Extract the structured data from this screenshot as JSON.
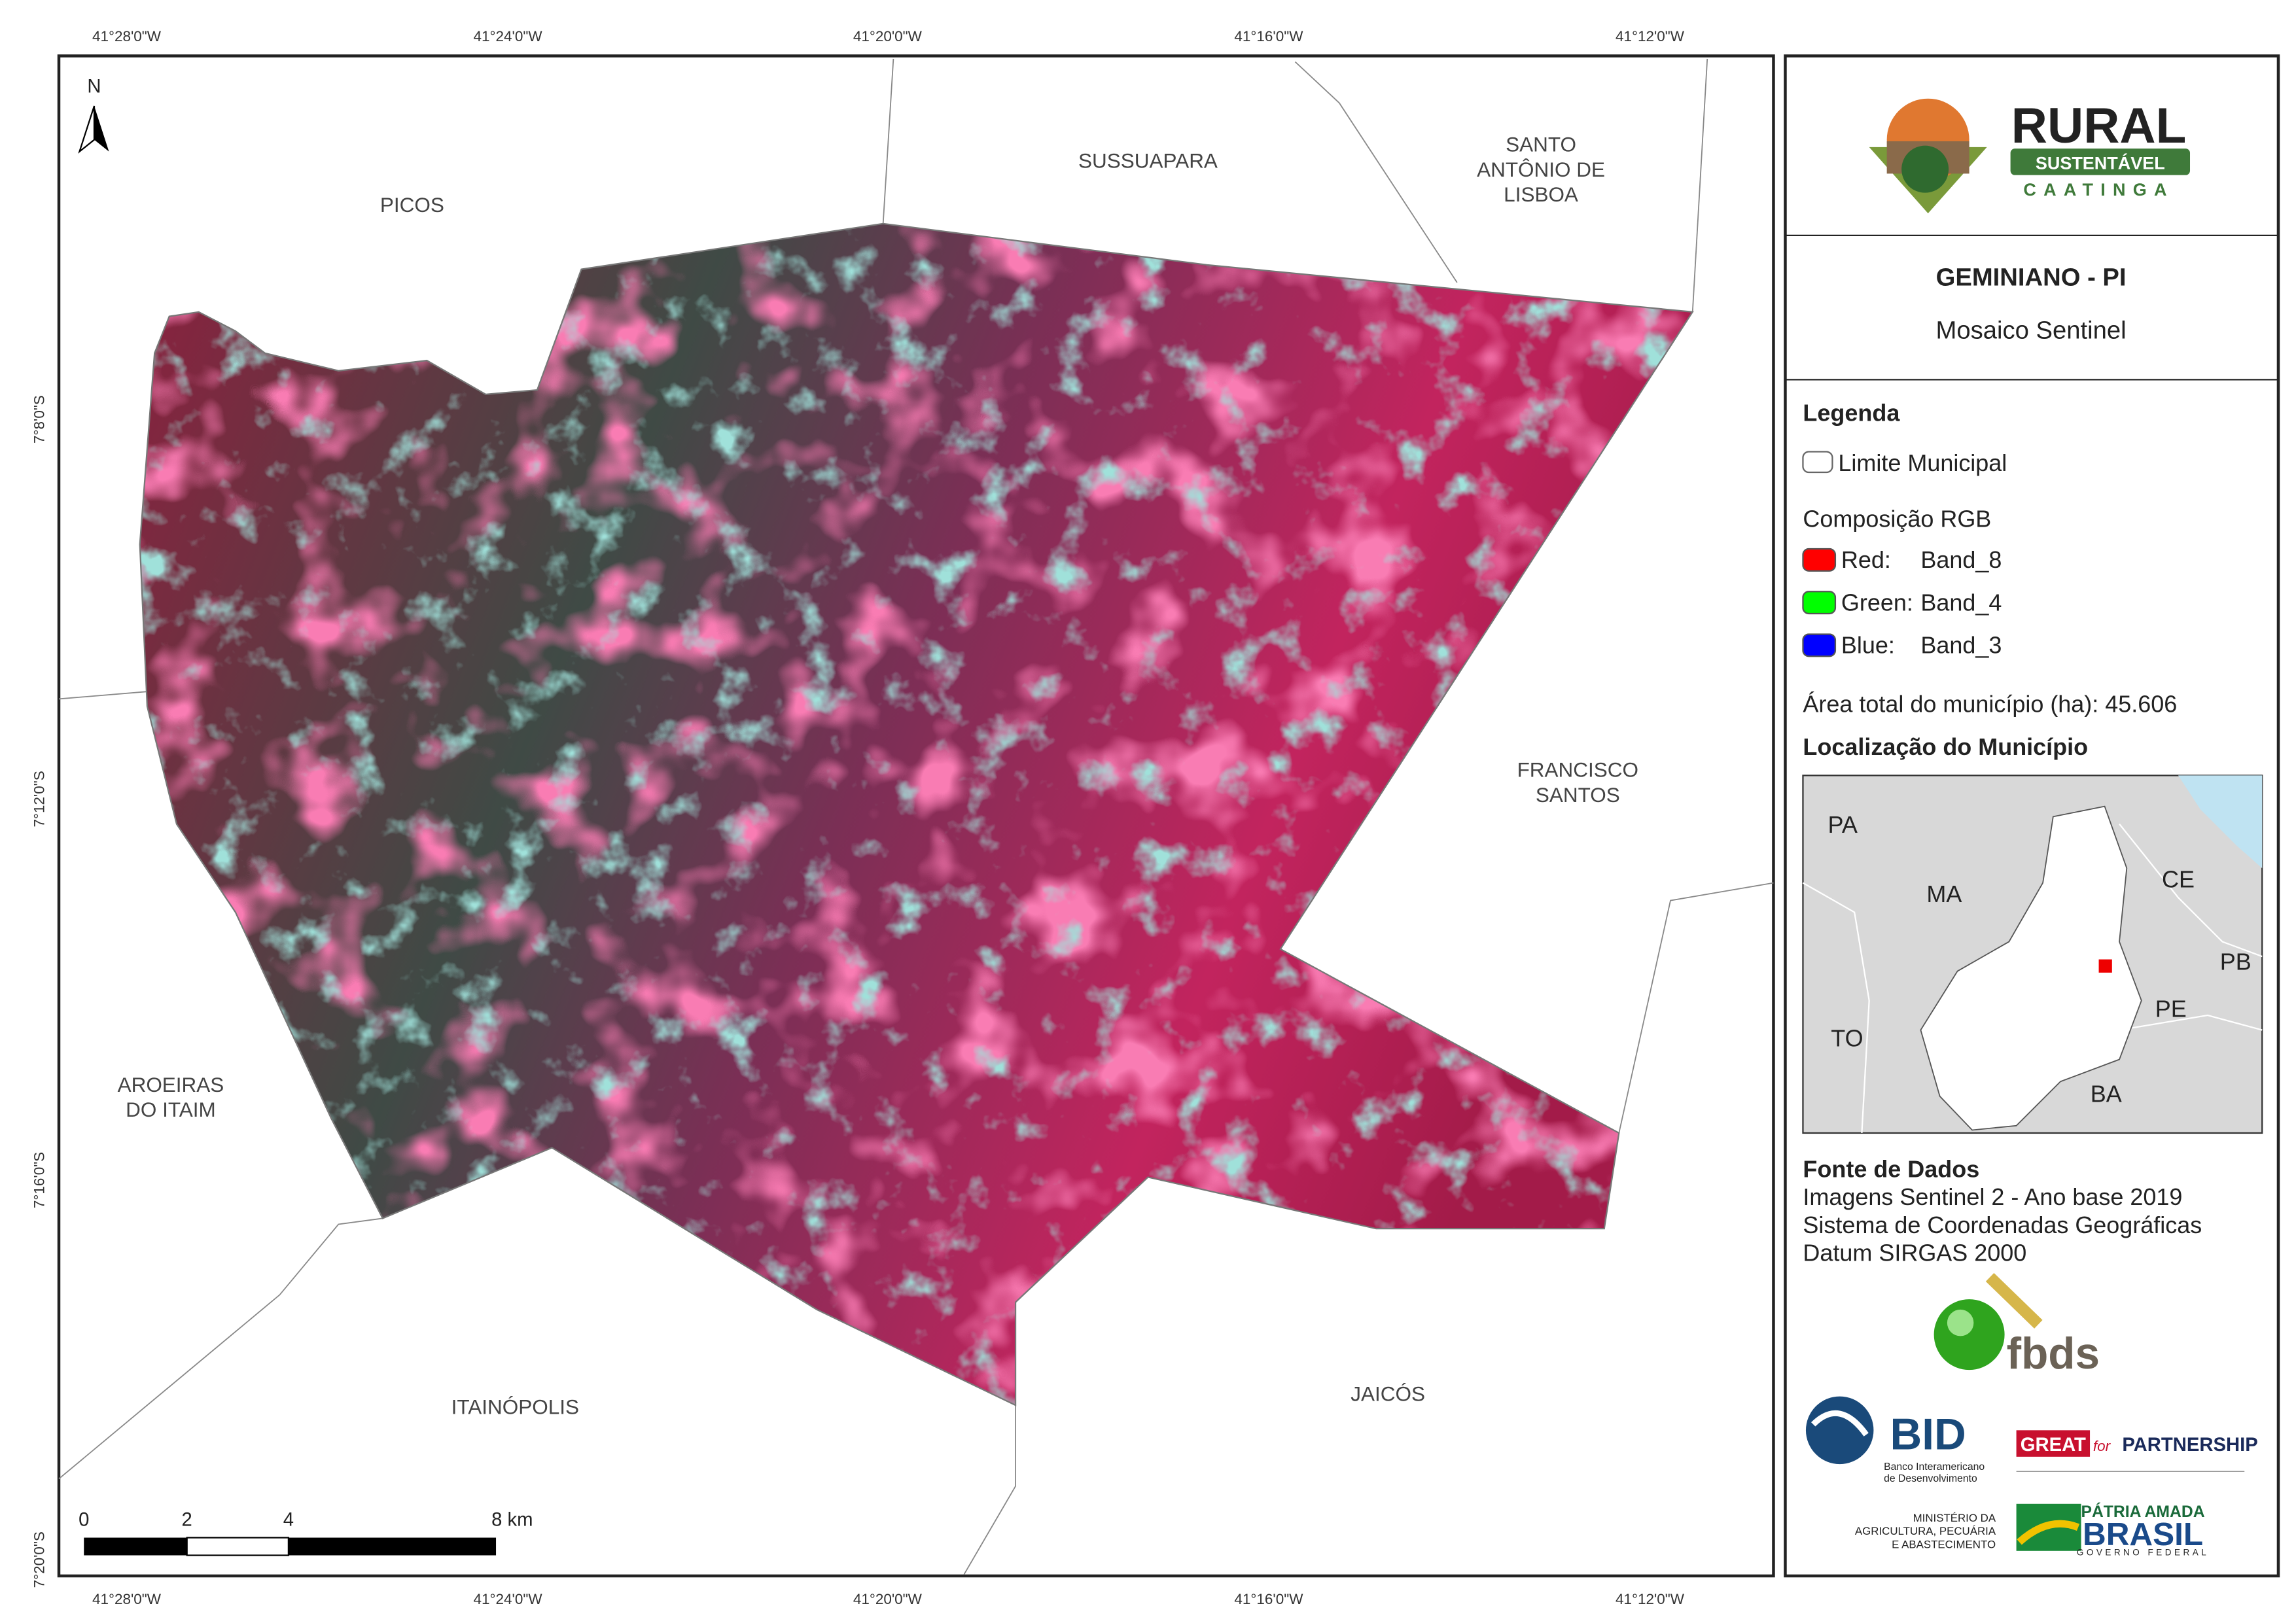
{
  "map": {
    "top_ticks": [
      "41°28'0\"W",
      "41°24'0\"W",
      "41°20'0\"W",
      "41°16'0\"W",
      "41°12'0\"W"
    ],
    "bottom_ticks": [
      "41°28'0\"W",
      "41°24'0\"W",
      "41°20'0\"W",
      "41°16'0\"W",
      "41°12'0\"W"
    ],
    "left_ticks": [
      "7°8'0\"S",
      "7°12'0\"S",
      "7°16'0\"S",
      "7°20'0\"S"
    ],
    "north": "N",
    "places": [
      {
        "lines": [
          "PICOS"
        ]
      },
      {
        "lines": [
          "SUSSUAPARA"
        ]
      },
      {
        "lines": [
          "SANTO",
          "ANTÔNIO DE",
          "LISBOA"
        ]
      },
      {
        "lines": [
          "FRANCISCO",
          "SANTOS"
        ]
      },
      {
        "lines": [
          "AROEIRAS",
          "DO ITAIM"
        ]
      },
      {
        "lines": [
          "ITAINÓPOLIS"
        ]
      },
      {
        "lines": [
          "JAICÓS"
        ]
      }
    ],
    "scale": [
      "0",
      "2",
      "4",
      "8 km"
    ]
  },
  "panel": {
    "logo": {
      "title": "RURAL",
      "sub": "SUSTENTÁVEL",
      "region": "CAATINGA"
    },
    "title": "GEMINIANO - PI",
    "subtitle": "Mosaico Sentinel",
    "legend": {
      "title": "Legenda",
      "boundary": "Limite Municipal",
      "rgb_title": "Composição RGB",
      "bands": [
        {
          "channel": "Red:",
          "band": "Band_8"
        },
        {
          "channel": "Green:",
          "band": "Band_4"
        },
        {
          "channel": "Blue:",
          "band": "Band_3"
        }
      ]
    },
    "area": "Área total do município (ha): 45.606",
    "location": {
      "title": "Localização do Município",
      "states": [
        "PA",
        "MA",
        "CE",
        "PB",
        "PE",
        "TO",
        "BA"
      ]
    },
    "sources": {
      "title": "Fonte de Dados",
      "lines": [
        "Imagens Sentinel 2 - Ano base 2019",
        "Sistema de Coordenadas Geográficas",
        "Datum SIRGAS 2000"
      ]
    },
    "logos": {
      "fbds": "fbds",
      "bid": "BID",
      "bid_name": [
        "Banco Interamericano",
        "de Desenvolvimento"
      ],
      "great": "GREAT",
      "great_for": "for",
      "partnership": "PARTNERSHIP",
      "ministry": [
        "MINISTÉRIO DA",
        "AGRICULTURA, PECUÁRIA",
        "E ABASTECIMENTO"
      ],
      "brasil_top": "PÁTRIA AMADA",
      "brasil": "BRASIL",
      "brasil_sub": "GOVERNO FEDERAL"
    }
  }
}
